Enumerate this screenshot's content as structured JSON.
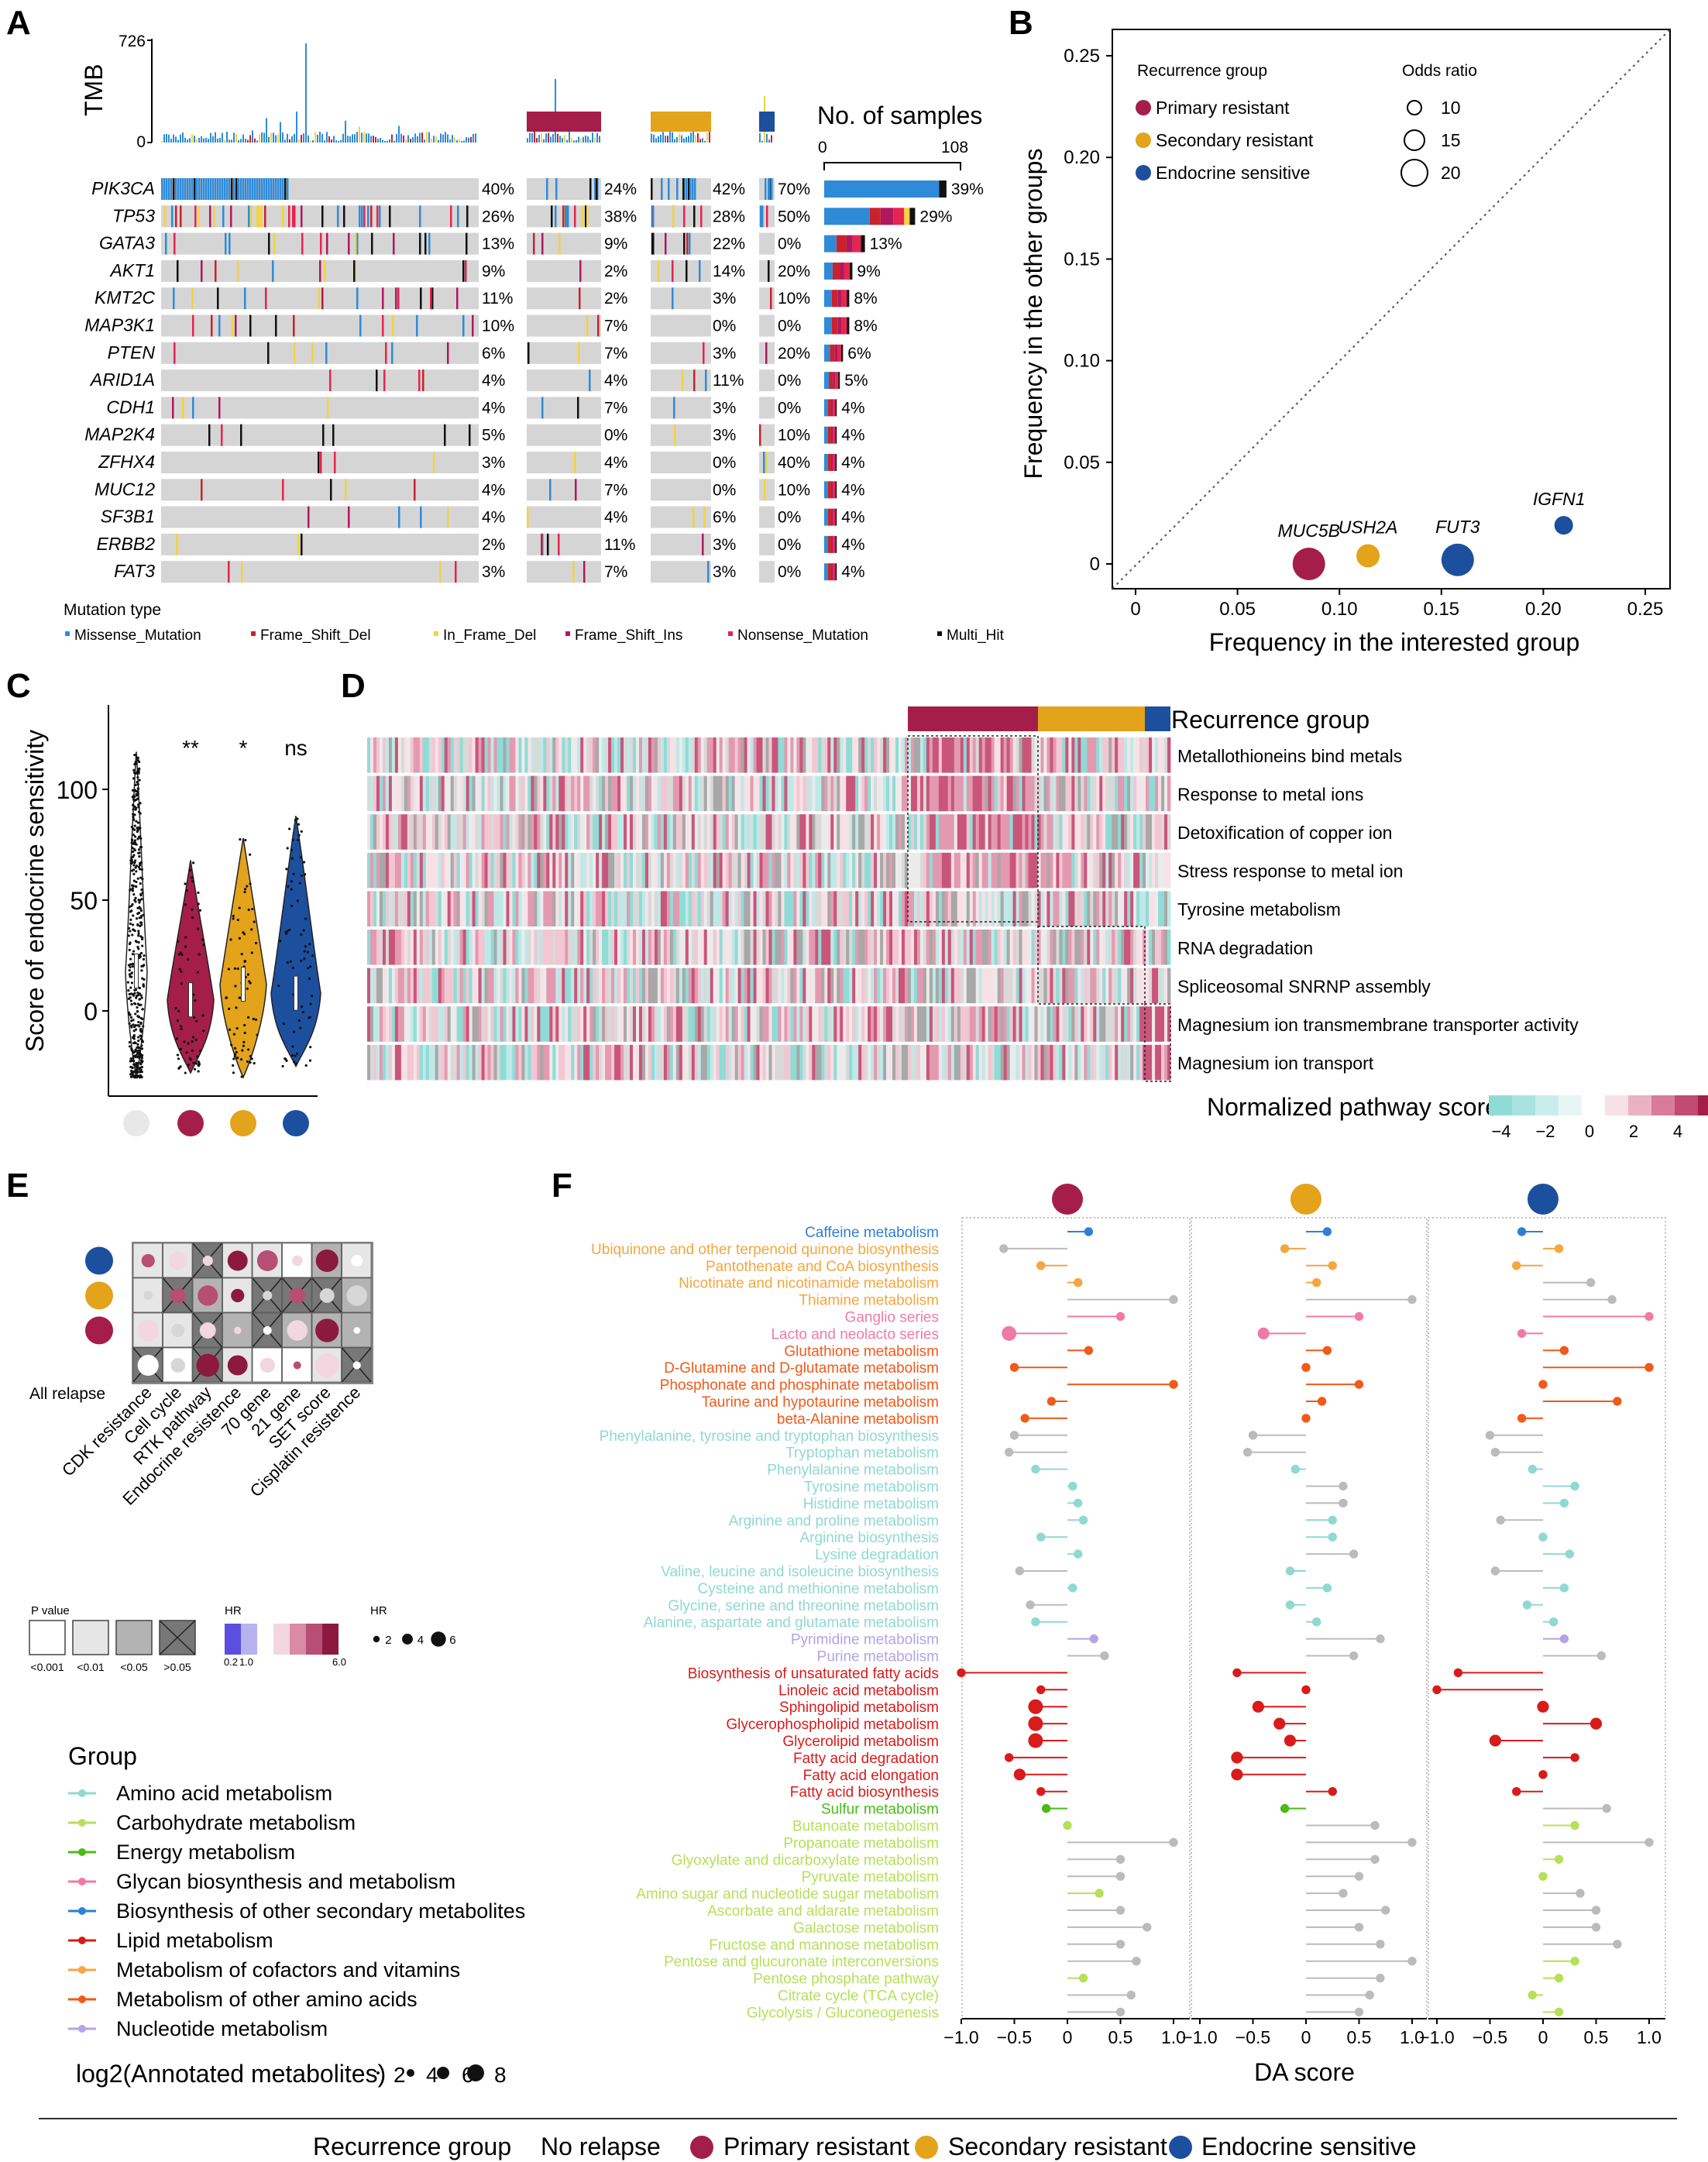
{
  "colors": {
    "primary": "#a51e49",
    "secondary": "#e3a31b",
    "sensitive": "#1c4f9e",
    "norelapse": "#e8e8e8",
    "missense": "#2f8bd8",
    "frameshift_del": "#c8232c",
    "inframe_del": "#f2d33f",
    "frameshift_ins": "#b0185e",
    "nonsense": "#e6244f",
    "multihit": "#111111"
  },
  "panel_labels": [
    "A",
    "B",
    "C",
    "D",
    "E",
    "F"
  ],
  "panelA": {
    "tmb_label": "TMB",
    "tmb_max": "726",
    "tmb_min": "0",
    "nsamples_title": "No. of samples",
    "nsamples_min": "0",
    "nsamples_max": "108",
    "genes": [
      "PIK3CA",
      "TP53",
      "GATA3",
      "AKT1",
      "KMT2C",
      "MAP3K1",
      "PTEN",
      "ARID1A",
      "CDH1",
      "MAP2K4",
      "ZFHX4",
      "MUC12",
      "SF3B1",
      "ERBB2",
      "FAT3"
    ],
    "pct_no_relapse": [
      "40%",
      "26%",
      "13%",
      "9%",
      "11%",
      "10%",
      "6%",
      "4%",
      "4%",
      "5%",
      "3%",
      "4%",
      "4%",
      "2%",
      "3%"
    ],
    "pct_primary": [
      "24%",
      "38%",
      "9%",
      "2%",
      "2%",
      "7%",
      "7%",
      "4%",
      "7%",
      "0%",
      "4%",
      "7%",
      "4%",
      "11%",
      "7%"
    ],
    "pct_secondary": [
      "42%",
      "28%",
      "22%",
      "14%",
      "3%",
      "0%",
      "3%",
      "11%",
      "3%",
      "3%",
      "0%",
      "0%",
      "6%",
      "3%",
      "3%"
    ],
    "pct_sensitive": [
      "70%",
      "50%",
      "0%",
      "20%",
      "10%",
      "0%",
      "20%",
      "0%",
      "0%",
      "10%",
      "40%",
      "10%",
      "0%",
      "0%",
      "0%"
    ],
    "pct_total": [
      "39%",
      "29%",
      "13%",
      "9%",
      "8%",
      "8%",
      "6%",
      "5%",
      "4%",
      "4%",
      "4%",
      "4%",
      "4%",
      "4%",
      "4%"
    ],
    "total_fraction": [
      0.39,
      0.29,
      0.13,
      0.09,
      0.08,
      0.08,
      0.06,
      0.05,
      0.04,
      0.04,
      0.04,
      0.04,
      0.04,
      0.04,
      0.04
    ],
    "mutation_type_title": "Mutation type",
    "mutation_types": [
      "Missense_Mutation",
      "Frame_Shift_Del",
      "In_Frame_Del",
      "Frame_Shift_Ins",
      "Nonsense_Mutation",
      "Multi_Hit"
    ]
  },
  "panelB": {
    "xlabel": "Frequency in the interested group",
    "ylabel": "Frequency in the other groups",
    "xticks": [
      "0",
      "0.05",
      "0.10",
      "0.15",
      "0.20",
      "0.25"
    ],
    "yticks": [
      "0",
      "0.05",
      "0.10",
      "0.15",
      "0.20",
      "0.25"
    ],
    "legend_group_title": "Recurrence group",
    "legend_groups": [
      "Primary resistant",
      "Secondary resistant",
      "Endocrine sensitive"
    ],
    "legend_or_title": "Odds ratio",
    "legend_or": [
      "10",
      "15",
      "20"
    ]
  },
  "panelC": {
    "ylabel": "Score of endocrine sensitivity",
    "yticks": [
      "0",
      "50",
      "100"
    ],
    "sig": [
      "**",
      "*",
      "ns"
    ]
  },
  "panelD": {
    "header": "Recurrence group",
    "pathways": [
      "Metallothioneins bind metals",
      "Response to metal ions",
      "Detoxification of copper ion",
      "Stress response to metal ion",
      "Tyrosine metabolism",
      "RNA degradation",
      "Spliceosomal SNRNP assembly",
      "Magnesium ion transmembrane transporter activity",
      "Magnesium ion transport"
    ],
    "scale_title": "Normalized pathway score",
    "scale_ticks": [
      "−4",
      "−2",
      "0",
      "2",
      "4"
    ]
  },
  "panelE": {
    "row_labels": [
      "All relapse"
    ],
    "columns": [
      "CDK resistance",
      "Cell cycle",
      "RTK pathway",
      "Endocrine resistence",
      "70 gene",
      "21 gene",
      "SET score",
      "Cisplatin resistence"
    ],
    "pvalue_title": "P value",
    "pvalue_levels": [
      "<0.001",
      "<0.01",
      "<0.05",
      ">0.05"
    ],
    "hr_title": "HR",
    "hr_ticks": [
      "0.2",
      "1.0",
      "6.0"
    ],
    "hr_size_title": "HR",
    "hr_sizes": [
      "2",
      "4",
      "6"
    ]
  },
  "panelF": {
    "xlabel": "DA score",
    "xticks": [
      "−1.0",
      "−0.5",
      "0",
      "0.5",
      "1.0"
    ],
    "group_title": "Group",
    "groups": [
      "Amino acid metabolism",
      "Carbohydrate metabolism",
      "Energy metabolism",
      "Glycan biosynthesis and metabolism",
      "Biosynthesis of other secondary metabolites",
      "Lipid metabolism",
      "Metabolism of cofactors and vitamins",
      "Metabolism of other amino acids",
      "Nucleotide metabolism"
    ],
    "group_colors": [
      "#8fd9d1",
      "#b6e05a",
      "#4cbb17",
      "#f07aa6",
      "#2f7fd6",
      "#d81b1b",
      "#f4a640",
      "#f05a1a",
      "#b3a4e6"
    ],
    "size_title": "log2(Annotated metabolites)",
    "size_ticks": [
      "2",
      "4",
      "6",
      "8"
    ],
    "pathways": [
      {
        "name": "Caffeine metabolism",
        "color": "#2f7fd6"
      },
      {
        "name": "Ubiquinone and other terpenoid quinone biosynthesis",
        "color": "#f4a640"
      },
      {
        "name": "Pantothenate and CoA biosynthesis",
        "color": "#f4a640"
      },
      {
        "name": "Nicotinate and nicotinamide metabolism",
        "color": "#f4a640"
      },
      {
        "name": "Thiamine metabolism",
        "color": "#f4a640"
      },
      {
        "name": "Ganglio series",
        "color": "#f07aa6"
      },
      {
        "name": "Lacto and neolacto series",
        "color": "#f07aa6"
      },
      {
        "name": "Glutathione metabolism",
        "color": "#f05a1a"
      },
      {
        "name": "D-Glutamine and D-glutamate metabolism",
        "color": "#f05a1a"
      },
      {
        "name": "Phosphonate and phosphinate metabolism",
        "color": "#f05a1a"
      },
      {
        "name": "Taurine and hypotaurine metabolism",
        "color": "#f05a1a"
      },
      {
        "name": "beta-Alanine metabolism",
        "color": "#f05a1a"
      },
      {
        "name": "Phenylalanine, tyrosine and tryptophan biosynthesis",
        "color": "#8fd9d1"
      },
      {
        "name": "Tryptophan metabolism",
        "color": "#8fd9d1"
      },
      {
        "name": "Phenylalanine metabolism",
        "color": "#8fd9d1"
      },
      {
        "name": "Tyrosine metabolism",
        "color": "#8fd9d1"
      },
      {
        "name": "Histidine metabolism",
        "color": "#8fd9d1"
      },
      {
        "name": "Arginine and proline metabolism",
        "color": "#8fd9d1"
      },
      {
        "name": "Arginine biosynthesis",
        "color": "#8fd9d1"
      },
      {
        "name": "Lysine degradation",
        "color": "#8fd9d1"
      },
      {
        "name": "Valine, leucine and isoleucine biosynthesis",
        "color": "#8fd9d1"
      },
      {
        "name": "Cysteine and methionine metabolism",
        "color": "#8fd9d1"
      },
      {
        "name": "Glycine, serine and threonine metabolism",
        "color": "#8fd9d1"
      },
      {
        "name": "Alanine, aspartate and glutamate metabolism",
        "color": "#8fd9d1"
      },
      {
        "name": "Pyrimidine metabolism",
        "color": "#b3a4e6"
      },
      {
        "name": "Purine metabolism",
        "color": "#b3a4e6"
      },
      {
        "name": "Biosynthesis of unsaturated fatty acids",
        "color": "#d81b1b"
      },
      {
        "name": "Linoleic acid metabolism",
        "color": "#d81b1b"
      },
      {
        "name": "Sphingolipid metabolism",
        "color": "#d81b1b"
      },
      {
        "name": "Glycerophospholipid metabolism",
        "color": "#d81b1b"
      },
      {
        "name": "Glycerolipid metabolism",
        "color": "#d81b1b"
      },
      {
        "name": "Fatty acid degradation",
        "color": "#d81b1b"
      },
      {
        "name": "Fatty acid elongation",
        "color": "#d81b1b"
      },
      {
        "name": "Fatty acid biosynthesis",
        "color": "#d81b1b"
      },
      {
        "name": "Sulfur metabolism",
        "color": "#4cbb17"
      },
      {
        "name": "Butanoate metabolism",
        "color": "#b6e05a"
      },
      {
        "name": "Propanoate metabolism",
        "color": "#b6e05a"
      },
      {
        "name": "Glyoxylate and dicarboxylate metabolism",
        "color": "#b6e05a"
      },
      {
        "name": "Pyruvate metabolism",
        "color": "#b6e05a"
      },
      {
        "name": "Amino sugar and nucleotide sugar metabolism",
        "color": "#b6e05a"
      },
      {
        "name": "Ascorbate and aldarate metabolism",
        "color": "#b6e05a"
      },
      {
        "name": "Galactose metabolism",
        "color": "#b6e05a"
      },
      {
        "name": "Fructose and mannose metabolism",
        "color": "#b6e05a"
      },
      {
        "name": "Pentose and glucuronate interconversions",
        "color": "#b6e05a"
      },
      {
        "name": "Pentose phosphate pathway",
        "color": "#b6e05a"
      },
      {
        "name": "Citrate cycle (TCA cycle)",
        "color": "#b6e05a"
      },
      {
        "name": "Glycolysis / Gluconeogenesis",
        "color": "#b6e05a"
      }
    ]
  },
  "chart_data": [
    {
      "type": "scatter",
      "panel": "B",
      "xlim": [
        0,
        0.25
      ],
      "ylim": [
        0,
        0.25
      ],
      "points": [
        {
          "label": "MUC5B",
          "x": 0.085,
          "y": 0.0,
          "group": "Primary resistant",
          "odds_ratio": 20
        },
        {
          "label": "USH2A",
          "x": 0.114,
          "y": 0.004,
          "group": "Secondary resistant",
          "odds_ratio": 12
        },
        {
          "label": "FUT3",
          "x": 0.158,
          "y": 0.002,
          "group": "Endocrine sensitive",
          "odds_ratio": 20
        },
        {
          "label": "IGFN1",
          "x": 0.21,
          "y": 0.019,
          "group": "Endocrine sensitive",
          "odds_ratio": 8
        }
      ]
    },
    {
      "type": "violin",
      "panel": "C",
      "ylim": [
        -35,
        135
      ],
      "groups": [
        "No relapse",
        "Primary resistant",
        "Secondary resistant",
        "Endocrine sensitive"
      ],
      "medians": [
        18,
        5,
        12,
        8
      ],
      "max": [
        117,
        68,
        78,
        88
      ],
      "min": [
        -30,
        -28,
        -30,
        -25
      ]
    },
    {
      "type": "bar",
      "panel": "F",
      "categories_ref": "panelF.pathways",
      "series": [
        {
          "name": "Primary resistant",
          "values": [
            0.2,
            -0.6,
            -0.25,
            0.1,
            1.0,
            0.5,
            -0.55,
            0.2,
            -0.5,
            1.0,
            -0.15,
            -0.4,
            -0.5,
            -0.55,
            -0.3,
            0.05,
            0.1,
            0.15,
            -0.25,
            0.1,
            -0.45,
            0.05,
            -0.35,
            -0.3,
            0.25,
            0.35,
            -1.0,
            -0.25,
            -0.3,
            -0.3,
            -0.3,
            -0.55,
            -0.45,
            -0.25,
            -0.2,
            0.0,
            1.0,
            0.5,
            0.5,
            0.3,
            0.5,
            0.75,
            0.5,
            0.65,
            0.15,
            0.6,
            0.5
          ],
          "sizes": [
            3,
            3,
            3,
            3,
            3,
            3,
            5,
            3,
            3,
            3,
            3,
            3,
            3,
            3,
            3,
            3,
            3,
            3,
            3,
            3,
            3,
            3,
            3,
            3,
            3,
            3,
            3,
            3,
            5,
            5,
            5,
            3,
            4,
            3,
            3,
            3,
            3,
            3,
            3,
            3,
            3,
            3,
            3,
            3,
            3,
            3,
            3
          ]
        },
        {
          "name": "Secondary resistant",
          "values": [
            0.2,
            -0.2,
            0.25,
            0.1,
            1.0,
            0.5,
            -0.4,
            0.2,
            0.0,
            0.5,
            0.15,
            0.0,
            -0.5,
            -0.55,
            -0.1,
            0.35,
            0.35,
            0.25,
            0.25,
            0.45,
            -0.15,
            0.2,
            -0.15,
            0.1,
            0.7,
            0.45,
            -0.65,
            0.0,
            -0.45,
            -0.25,
            -0.15,
            -0.65,
            -0.65,
            0.25,
            -0.2,
            0.65,
            1.0,
            0.65,
            0.5,
            0.35,
            0.75,
            0.5,
            0.7,
            1.0,
            0.7,
            0.6,
            0.5
          ],
          "sizes": [
            3,
            3,
            3,
            3,
            3,
            3,
            4,
            3,
            3,
            3,
            3,
            3,
            3,
            3,
            3,
            3,
            3,
            3,
            3,
            3,
            3,
            3,
            3,
            3,
            3,
            3,
            3,
            3,
            4,
            4,
            4,
            4,
            4,
            3,
            3,
            3,
            3,
            3,
            3,
            3,
            3,
            3,
            3,
            3,
            3,
            3,
            3
          ]
        },
        {
          "name": "Endocrine sensitive",
          "values": [
            -0.2,
            0.15,
            -0.25,
            0.45,
            0.65,
            1.0,
            -0.2,
            0.2,
            1.0,
            0.0,
            0.7,
            -0.2,
            -0.5,
            -0.45,
            -0.1,
            0.3,
            0.2,
            -0.4,
            0.0,
            0.25,
            -0.45,
            0.2,
            -0.15,
            0.1,
            0.2,
            0.55,
            -0.8,
            -1.0,
            0.0,
            0.5,
            -0.45,
            0.3,
            0.0,
            -0.25,
            0.6,
            0.3,
            1.0,
            0.15,
            0.0,
            0.35,
            0.5,
            0.5,
            0.7,
            0.3,
            0.15,
            -0.1,
            0.15
          ],
          "sizes": [
            3,
            3,
            3,
            3,
            3,
            3,
            3,
            3,
            3,
            3,
            3,
            3,
            3,
            3,
            3,
            3,
            3,
            3,
            3,
            3,
            3,
            3,
            3,
            3,
            3,
            3,
            3,
            3,
            4,
            4,
            4,
            3,
            3,
            3,
            3,
            3,
            3,
            3,
            3,
            3,
            3,
            3,
            3,
            3,
            3,
            3,
            3
          ]
        }
      ]
    }
  ],
  "bottom_legend": {
    "title": "Recurrence group",
    "items": [
      "No relapse",
      "Primary resistant",
      "Secondary resistant",
      "Endocrine sensitive"
    ]
  }
}
